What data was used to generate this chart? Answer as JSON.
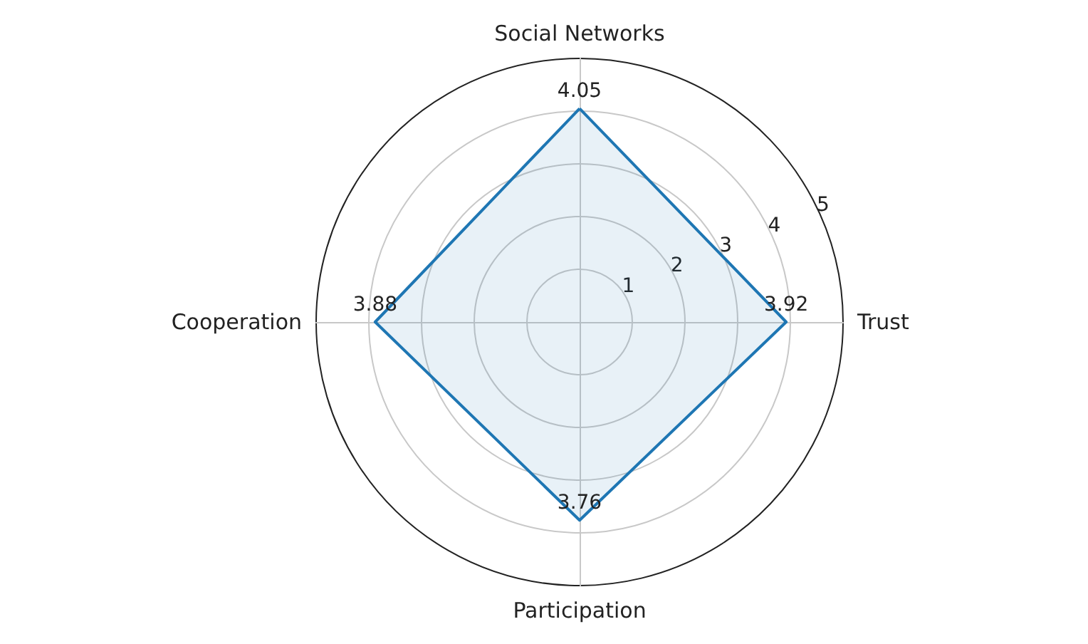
{
  "chart_data": {
    "type": "radar",
    "categories": [
      "Social Networks",
      "Trust",
      "Participation",
      "Cooperation"
    ],
    "series": [
      {
        "color": "#1f77b4",
        "values": [
          4.05,
          3.92,
          3.76,
          3.88
        ]
      }
    ],
    "ylim": [
      0,
      5
    ],
    "yticks": [
      1,
      2,
      3,
      4,
      5
    ],
    "grid": true,
    "data_labels": true,
    "marker": "none"
  }
}
